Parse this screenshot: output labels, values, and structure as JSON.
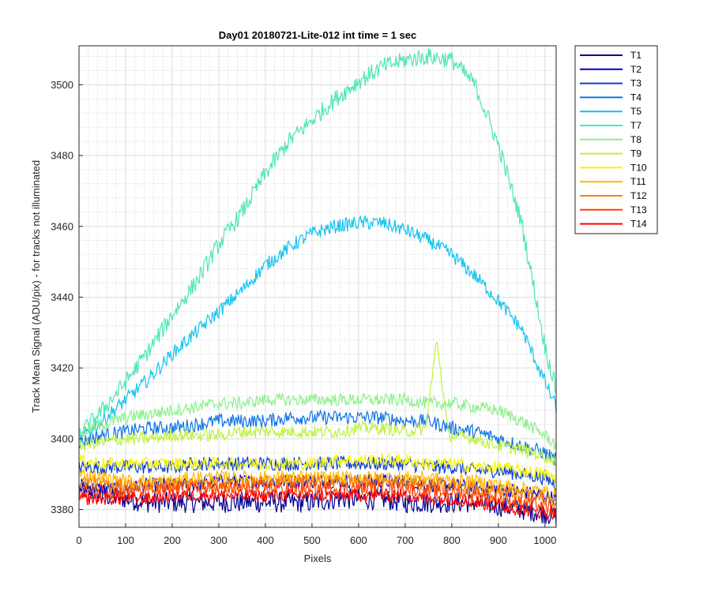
{
  "chart_data": {
    "type": "line",
    "title": "Day01 20180721-Lite-012 int time = 1 sec",
    "xlabel": "Pixels",
    "ylabel": "Track Mean Signal (ADU/pix) - for tracks not illuminated",
    "xlim": [
      0,
      1024
    ],
    "ylim": [
      3375,
      3511
    ],
    "xticks": [
      0,
      100,
      200,
      300,
      400,
      500,
      600,
      700,
      800,
      900,
      1000
    ],
    "yticks": [
      3380,
      3400,
      3420,
      3440,
      3460,
      3480,
      3500
    ],
    "grid": "major and minor",
    "legend_position": "outside right",
    "x_samples": [
      0,
      50,
      100,
      150,
      200,
      250,
      300,
      350,
      400,
      450,
      500,
      550,
      600,
      650,
      700,
      750,
      800,
      850,
      900,
      950,
      1000,
      1024
    ],
    "series": [
      {
        "name": "T1",
        "color": "#000090",
        "noise": 3.0,
        "values": [
          3386,
          3384,
          3383,
          3382,
          3382,
          3382,
          3382,
          3382,
          3382,
          3382,
          3382,
          3383,
          3383,
          3383,
          3382,
          3382,
          3382,
          3382,
          3381,
          3380,
          3379,
          3378
        ]
      },
      {
        "name": "T2",
        "color": "#0000c8",
        "noise": 2.0,
        "values": [
          3386,
          3386,
          3386,
          3387,
          3387,
          3387,
          3388,
          3388,
          3388,
          3388,
          3388,
          3388,
          3388,
          3388,
          3388,
          3387,
          3387,
          3386,
          3386,
          3385,
          3384,
          3383
        ]
      },
      {
        "name": "T3",
        "color": "#0a3fd6",
        "noise": 2.0,
        "values": [
          3392,
          3392,
          3392,
          3392,
          3392,
          3393,
          3393,
          3393,
          3393,
          3393,
          3393,
          3393,
          3393,
          3393,
          3393,
          3392,
          3392,
          3391,
          3391,
          3390,
          3389,
          3387
        ]
      },
      {
        "name": "T4",
        "color": "#0d73e6",
        "noise": 2.0,
        "values": [
          3399,
          3401,
          3402,
          3403,
          3403,
          3404,
          3405,
          3405,
          3405,
          3406,
          3406,
          3406,
          3406,
          3406,
          3405,
          3405,
          3403,
          3402,
          3400,
          3398,
          3396,
          3394
        ]
      },
      {
        "name": "T5",
        "color": "#12c2ee",
        "noise": 2.0,
        "values": [
          3400,
          3405,
          3411,
          3417,
          3424,
          3430,
          3436,
          3442,
          3449,
          3454,
          3458,
          3460,
          3461,
          3461,
          3459,
          3456,
          3452,
          3446,
          3439,
          3431,
          3416,
          3409
        ]
      },
      {
        "name": "T7",
        "color": "#4de6b8",
        "noise": 2.5,
        "values": [
          3401,
          3408,
          3416,
          3425,
          3435,
          3444,
          3455,
          3464,
          3475,
          3484,
          3490,
          3496,
          3501,
          3505,
          3507,
          3508,
          3507,
          3500,
          3483,
          3461,
          3426,
          3414
        ]
      },
      {
        "name": "T8",
        "color": "#8cf08c",
        "noise": 1.8,
        "values": [
          3402,
          3404,
          3406,
          3407,
          3408,
          3409,
          3410,
          3410,
          3411,
          3411,
          3411,
          3411,
          3411,
          3411,
          3411,
          3410,
          3410,
          3409,
          3408,
          3405,
          3401,
          3398
        ]
      },
      {
        "name": "T9",
        "color": "#bff23f",
        "noise": 1.8,
        "values": [
          3398,
          3399,
          3400,
          3400,
          3401,
          3401,
          3401,
          3402,
          3402,
          3402,
          3402,
          3402,
          3403,
          3403,
          3402,
          3403,
          3401,
          3400,
          3398,
          3397,
          3395,
          3394
        ]
      },
      {
        "name": "T10",
        "color": "#f5f500",
        "noise": 1.8,
        "values": [
          3394,
          3393,
          3393,
          3393,
          3393,
          3393,
          3393,
          3393,
          3393,
          3393,
          3393,
          3394,
          3394,
          3394,
          3394,
          3393,
          3393,
          3392,
          3392,
          3391,
          3390,
          3389
        ]
      },
      {
        "name": "T11",
        "color": "#ffba00",
        "noise": 2.0,
        "values": [
          3390,
          3389,
          3388,
          3388,
          3388,
          3389,
          3389,
          3389,
          3389,
          3389,
          3389,
          3389,
          3389,
          3389,
          3389,
          3389,
          3388,
          3388,
          3387,
          3386,
          3385,
          3384
        ]
      },
      {
        "name": "T12",
        "color": "#ff8000",
        "noise": 2.0,
        "values": [
          3388,
          3387,
          3387,
          3387,
          3387,
          3387,
          3387,
          3387,
          3388,
          3388,
          3388,
          3388,
          3388,
          3388,
          3388,
          3387,
          3387,
          3386,
          3385,
          3384,
          3383,
          3382
        ]
      },
      {
        "name": "T13",
        "color": "#ff4000",
        "noise": 2.0,
        "values": [
          3385,
          3385,
          3385,
          3385,
          3386,
          3386,
          3386,
          3386,
          3386,
          3386,
          3386,
          3386,
          3386,
          3386,
          3386,
          3385,
          3385,
          3384,
          3383,
          3382,
          3381,
          3380
        ]
      },
      {
        "name": "T14",
        "color": "#ff0000",
        "noise": 1.8,
        "values": [
          3383,
          3383,
          3383,
          3383,
          3384,
          3384,
          3384,
          3384,
          3384,
          3384,
          3384,
          3384,
          3384,
          3384,
          3384,
          3383,
          3383,
          3382,
          3381,
          3380,
          3379,
          3379
        ]
      }
    ],
    "annotations": [
      {
        "series": "T9",
        "type": "spike",
        "x_center": 768,
        "peak": 3428
      }
    ]
  }
}
